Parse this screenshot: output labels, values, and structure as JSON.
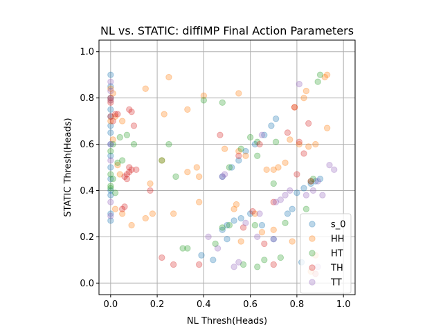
{
  "chart_data": {
    "type": "scatter",
    "title": "NL vs. STATIC: diffIMP Final Action Parameters",
    "xlabel": "NL Thresh(Heads)",
    "ylabel": "STATIC Thresh(Heads)",
    "xlim": [
      -0.05,
      1.05
    ],
    "ylim": [
      -0.05,
      1.05
    ],
    "xticks": [
      "0.0",
      "0.2",
      "0.4",
      "0.6",
      "0.8",
      "1.0"
    ],
    "yticks": [
      "0.0",
      "0.2",
      "0.4",
      "0.6",
      "0.8",
      "1.0"
    ],
    "grid": true,
    "legend_position": "lower-right",
    "series": [
      {
        "name": "s_0",
        "color": "#1f77b4",
        "points": [
          [
            0.0,
            0.9
          ],
          [
            0.0,
            0.85
          ],
          [
            0.0,
            0.8
          ],
          [
            0.0,
            0.75
          ],
          [
            0.0,
            0.72
          ],
          [
            0.0,
            0.68
          ],
          [
            0.0,
            0.65
          ],
          [
            0.0,
            0.6
          ],
          [
            0.0,
            0.55
          ],
          [
            0.0,
            0.5
          ],
          [
            0.0,
            0.45
          ],
          [
            0.0,
            0.4
          ],
          [
            0.0,
            0.38
          ],
          [
            0.0,
            0.3
          ],
          [
            0.0,
            0.27
          ],
          [
            0.48,
            0.23
          ],
          [
            0.5,
            0.25
          ],
          [
            0.53,
            0.27
          ],
          [
            0.56,
            0.28
          ],
          [
            0.6,
            0.3
          ],
          [
            0.65,
            0.25
          ],
          [
            0.7,
            0.19
          ],
          [
            0.5,
            0.19
          ],
          [
            0.48,
            0.46
          ],
          [
            0.52,
            0.5
          ],
          [
            0.55,
            0.53
          ],
          [
            0.58,
            0.57
          ],
          [
            0.62,
            0.6
          ],
          [
            0.66,
            0.64
          ],
          [
            0.69,
            0.68
          ],
          [
            0.71,
            0.71
          ],
          [
            0.76,
            0.3
          ],
          [
            0.78,
            0.32
          ],
          [
            0.8,
            0.39
          ],
          [
            0.83,
            0.41
          ],
          [
            0.86,
            0.43
          ],
          [
            0.88,
            0.44
          ],
          [
            0.9,
            0.45
          ],
          [
            0.82,
            0.09
          ],
          [
            0.44,
            0.1
          ],
          [
            0.39,
            0.12
          ]
        ]
      },
      {
        "name": "HH",
        "color": "#ff7f0e",
        "points": [
          [
            0.0,
            0.84
          ],
          [
            0.01,
            0.82
          ],
          [
            0.0,
            0.79
          ],
          [
            0.02,
            0.72
          ],
          [
            0.0,
            0.7
          ],
          [
            0.05,
            0.7
          ],
          [
            0.01,
            0.62
          ],
          [
            0.03,
            0.51
          ],
          [
            0.04,
            0.47
          ],
          [
            0.02,
            0.32
          ],
          [
            0.05,
            0.3
          ],
          [
            0.09,
            0.25
          ],
          [
            0.15,
            0.28
          ],
          [
            0.18,
            0.3
          ],
          [
            0.17,
            0.43
          ],
          [
            0.15,
            0.84
          ],
          [
            0.25,
            0.89
          ],
          [
            0.23,
            0.73
          ],
          [
            0.33,
            0.75
          ],
          [
            0.4,
            0.81
          ],
          [
            0.22,
            0.53
          ],
          [
            0.33,
            0.48
          ],
          [
            0.37,
            0.5
          ],
          [
            0.38,
            0.46
          ],
          [
            0.27,
            0.3
          ],
          [
            0.38,
            0.35
          ],
          [
            0.49,
            0.58
          ],
          [
            0.55,
            0.82
          ],
          [
            0.55,
            0.57
          ],
          [
            0.58,
            0.55
          ],
          [
            0.53,
            0.32
          ],
          [
            0.54,
            0.34
          ],
          [
            0.56,
            0.18
          ],
          [
            0.62,
            0.3
          ],
          [
            0.65,
            0.22
          ],
          [
            0.67,
            0.49
          ],
          [
            0.7,
            0.49
          ],
          [
            0.72,
            0.5
          ],
          [
            0.75,
            0.52
          ],
          [
            0.77,
            0.62
          ],
          [
            0.79,
            0.76
          ],
          [
            0.81,
            0.6
          ],
          [
            0.83,
            0.8
          ],
          [
            0.84,
            0.83
          ],
          [
            0.85,
            0.59
          ],
          [
            0.88,
            0.6
          ],
          [
            0.92,
            0.89
          ],
          [
            0.93,
            0.9
          ],
          [
            0.93,
            0.67
          ],
          [
            0.7,
            0.23
          ],
          [
            0.78,
            0.18
          ],
          [
            0.86,
            0.05
          ],
          [
            0.88,
            0.12
          ]
        ]
      },
      {
        "name": "HT",
        "color": "#2ca02c",
        "points": [
          [
            0.0,
            0.57
          ],
          [
            0.01,
            0.6
          ],
          [
            0.0,
            0.47
          ],
          [
            0.01,
            0.45
          ],
          [
            0.0,
            0.42
          ],
          [
            0.0,
            0.41
          ],
          [
            0.02,
            0.39
          ],
          [
            0.05,
            0.53
          ],
          [
            0.03,
            0.52
          ],
          [
            0.04,
            0.63
          ],
          [
            0.07,
            0.64
          ],
          [
            0.1,
            0.6
          ],
          [
            0.22,
            0.53
          ],
          [
            0.25,
            0.6
          ],
          [
            0.28,
            0.46
          ],
          [
            0.4,
            0.79
          ],
          [
            0.48,
            0.78
          ],
          [
            0.31,
            0.15
          ],
          [
            0.33,
            0.15
          ],
          [
            0.45,
            0.17
          ],
          [
            0.48,
            0.24
          ],
          [
            0.51,
            0.25
          ],
          [
            0.51,
            0.5
          ],
          [
            0.56,
            0.58
          ],
          [
            0.6,
            0.63
          ],
          [
            0.63,
            0.61
          ],
          [
            0.63,
            0.55
          ],
          [
            0.62,
            0.25
          ],
          [
            0.66,
            0.1
          ],
          [
            0.57,
            0.08
          ],
          [
            0.63,
            0.07
          ],
          [
            0.7,
            0.43
          ],
          [
            0.71,
            0.61
          ],
          [
            0.73,
            0.11
          ],
          [
            0.75,
            0.26
          ],
          [
            0.84,
            0.32
          ],
          [
            0.86,
            0.44
          ],
          [
            0.89,
            0.87
          ],
          [
            0.9,
            0.9
          ],
          [
            0.87,
            0.45
          ]
        ]
      },
      {
        "name": "TH",
        "color": "#d62728",
        "points": [
          [
            0.0,
            0.8
          ],
          [
            0.0,
            0.78
          ],
          [
            0.02,
            0.73
          ],
          [
            0.0,
            0.72
          ],
          [
            0.01,
            0.7
          ],
          [
            0.03,
            0.73
          ],
          [
            0.06,
            0.46
          ],
          [
            0.07,
            0.45
          ],
          [
            0.08,
            0.48
          ],
          [
            0.08,
            0.5
          ],
          [
            0.07,
            0.47
          ],
          [
            0.09,
            0.49
          ],
          [
            0.06,
            0.33
          ],
          [
            0.05,
            0.32
          ],
          [
            0.08,
            0.75
          ],
          [
            0.09,
            0.74
          ],
          [
            0.1,
            0.68
          ],
          [
            0.11,
            0.49
          ],
          [
            0.17,
            0.4
          ],
          [
            0.22,
            0.11
          ],
          [
            0.27,
            0.08
          ],
          [
            0.38,
            0.08
          ],
          [
            0.47,
            0.64
          ],
          [
            0.55,
            0.55
          ],
          [
            0.57,
            0.24
          ],
          [
            0.61,
            0.31
          ],
          [
            0.64,
            0.6
          ],
          [
            0.66,
            0.17
          ],
          [
            0.7,
            0.08
          ],
          [
            0.7,
            0.35
          ],
          [
            0.76,
            0.65
          ],
          [
            0.79,
            0.76
          ],
          [
            0.8,
            0.47
          ],
          [
            0.81,
            0.61
          ],
          [
            0.83,
            0.56
          ],
          [
            0.85,
            0.69
          ],
          [
            0.86,
            0.44
          ],
          [
            0.88,
            0.04
          ]
        ]
      },
      {
        "name": "TT",
        "color": "#9467bd",
        "points": [
          [
            0.0,
            0.87
          ],
          [
            0.0,
            0.83
          ],
          [
            0.0,
            0.79
          ],
          [
            0.0,
            0.6
          ],
          [
            0.0,
            0.53
          ],
          [
            0.0,
            0.35
          ],
          [
            0.0,
            0.29
          ],
          [
            0.42,
            0.2
          ],
          [
            0.46,
            0.15
          ],
          [
            0.48,
            0.46
          ],
          [
            0.49,
            0.47
          ],
          [
            0.53,
            0.07
          ],
          [
            0.55,
            0.09
          ],
          [
            0.58,
            0.26
          ],
          [
            0.63,
            0.2
          ],
          [
            0.64,
            0.3
          ],
          [
            0.65,
            0.64
          ],
          [
            0.7,
            0.19
          ],
          [
            0.71,
            0.35
          ],
          [
            0.73,
            0.36
          ],
          [
            0.75,
            0.38
          ],
          [
            0.77,
            0.4
          ],
          [
            0.81,
            0.86
          ],
          [
            0.84,
            0.38
          ],
          [
            0.87,
            0.4
          ],
          [
            0.89,
            0.44
          ],
          [
            0.91,
            0.38
          ],
          [
            0.94,
            0.51
          ],
          [
            0.96,
            0.49
          ],
          [
            0.89,
            0.07
          ]
        ]
      }
    ]
  }
}
